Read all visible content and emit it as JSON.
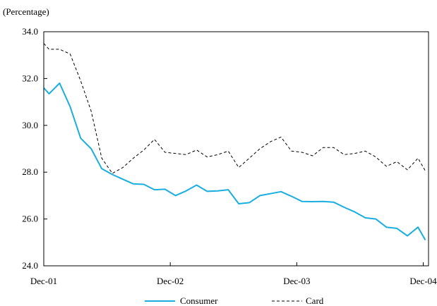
{
  "chart_data": {
    "type": "line",
    "ylabel": "(Percentage)",
    "ylim": [
      24,
      34
    ],
    "y_ticks": [
      24,
      26,
      28,
      30,
      32,
      34
    ],
    "y_tick_labels": [
      "24.0",
      "26.0",
      "28.0",
      "30.0",
      "32.0",
      "34.0"
    ],
    "x_tick_labels": [
      "Dec-01",
      "Dec-02",
      "Dec-03",
      "Dec-04"
    ],
    "x_tick_months": [
      0,
      12,
      24,
      36
    ],
    "x_range_months": [
      0,
      36.5
    ],
    "legend_position": "bottom",
    "grid": false,
    "series": [
      {
        "name": "Consumer",
        "color": "#1aaee0",
        "style": "solid",
        "x_months": [
          0,
          0.5,
          1.5,
          2.5,
          3.5,
          4.5,
          5.5,
          6.5,
          7.5,
          8.5,
          9.5,
          10.5,
          11.5,
          12.5,
          13.5,
          14.5,
          15.5,
          16.5,
          17.5,
          18.5,
          19.5,
          20.5,
          21.5,
          22.5,
          23.5,
          24.5,
          25.5,
          26.5,
          27.5,
          28.5,
          29.5,
          30.5,
          31.5,
          32.5,
          33.5,
          34.5,
          35.5,
          36.2
        ],
        "values": [
          31.6,
          31.35,
          31.8,
          30.8,
          29.45,
          29.0,
          28.15,
          27.9,
          27.7,
          27.5,
          27.48,
          27.25,
          27.27,
          27.0,
          27.2,
          27.45,
          27.18,
          27.2,
          27.25,
          26.65,
          26.7,
          27.0,
          27.08,
          27.17,
          26.97,
          26.75,
          26.74,
          26.75,
          26.72,
          26.5,
          26.3,
          26.05,
          26.0,
          25.65,
          25.6,
          25.28,
          25.65,
          25.1
        ]
      },
      {
        "name": "Card",
        "color": "#000000",
        "style": "dashed",
        "x_months": [
          0,
          0.5,
          1.5,
          2.5,
          3.5,
          4.5,
          5.5,
          6.5,
          7.5,
          8.5,
          9.5,
          10.5,
          11.5,
          12.5,
          13.5,
          14.5,
          15.5,
          16.5,
          17.5,
          18.5,
          19.5,
          20.5,
          21.5,
          22.5,
          23.5,
          24.5,
          25.5,
          26.5,
          27.5,
          28.5,
          29.5,
          30.5,
          31.5,
          32.5,
          33.5,
          34.5,
          35.5,
          36.2
        ],
        "values": [
          33.5,
          33.25,
          33.25,
          33.05,
          31.9,
          30.6,
          28.6,
          27.95,
          28.2,
          28.6,
          28.95,
          29.4,
          28.85,
          28.8,
          28.75,
          28.95,
          28.65,
          28.75,
          28.9,
          28.2,
          28.6,
          29.0,
          29.3,
          29.5,
          28.9,
          28.85,
          28.7,
          29.05,
          29.05,
          28.75,
          28.8,
          28.9,
          28.65,
          28.25,
          28.45,
          28.1,
          28.6,
          28.05
        ]
      }
    ]
  }
}
